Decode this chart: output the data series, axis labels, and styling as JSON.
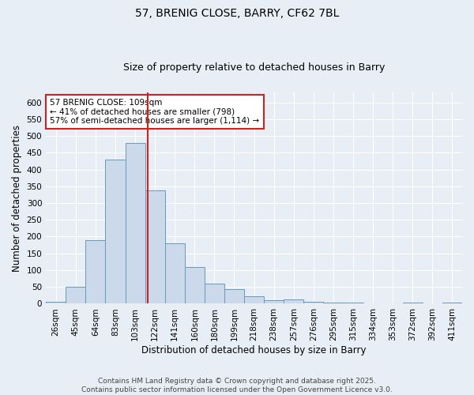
{
  "title": "57, BRENIG CLOSE, BARRY, CF62 7BL",
  "subtitle": "Size of property relative to detached houses in Barry",
  "xlabel": "Distribution of detached houses by size in Barry",
  "ylabel": "Number of detached properties",
  "categories": [
    "26sqm",
    "45sqm",
    "64sqm",
    "83sqm",
    "103sqm",
    "122sqm",
    "141sqm",
    "160sqm",
    "180sqm",
    "199sqm",
    "218sqm",
    "238sqm",
    "257sqm",
    "276sqm",
    "295sqm",
    "315sqm",
    "334sqm",
    "353sqm",
    "372sqm",
    "392sqm",
    "411sqm"
  ],
  "values": [
    5,
    50,
    190,
    430,
    480,
    338,
    180,
    110,
    60,
    44,
    22,
    11,
    12,
    6,
    4,
    4,
    2,
    1,
    4,
    1,
    3
  ],
  "bar_color": "#ccd9ea",
  "bar_edge_color": "#6699bb",
  "vline_x": 4.65,
  "vline_color": "#cc2222",
  "annotation_text": "57 BRENIG CLOSE: 109sqm\n← 41% of detached houses are smaller (798)\n57% of semi-detached houses are larger (1,114) →",
  "annotation_box_color": "#ffffff",
  "annotation_box_edge": "#cc2222",
  "ylim": [
    0,
    630
  ],
  "yticks": [
    0,
    50,
    100,
    150,
    200,
    250,
    300,
    350,
    400,
    450,
    500,
    550,
    600
  ],
  "bg_color": "#e8eef5",
  "grid_color": "#ffffff",
  "footer": "Contains HM Land Registry data © Crown copyright and database right 2025.\nContains public sector information licensed under the Open Government Licence v3.0.",
  "title_fontsize": 10,
  "subtitle_fontsize": 9,
  "axis_label_fontsize": 8.5,
  "tick_fontsize": 7.5,
  "annotation_fontsize": 7.5,
  "footer_fontsize": 6.5
}
